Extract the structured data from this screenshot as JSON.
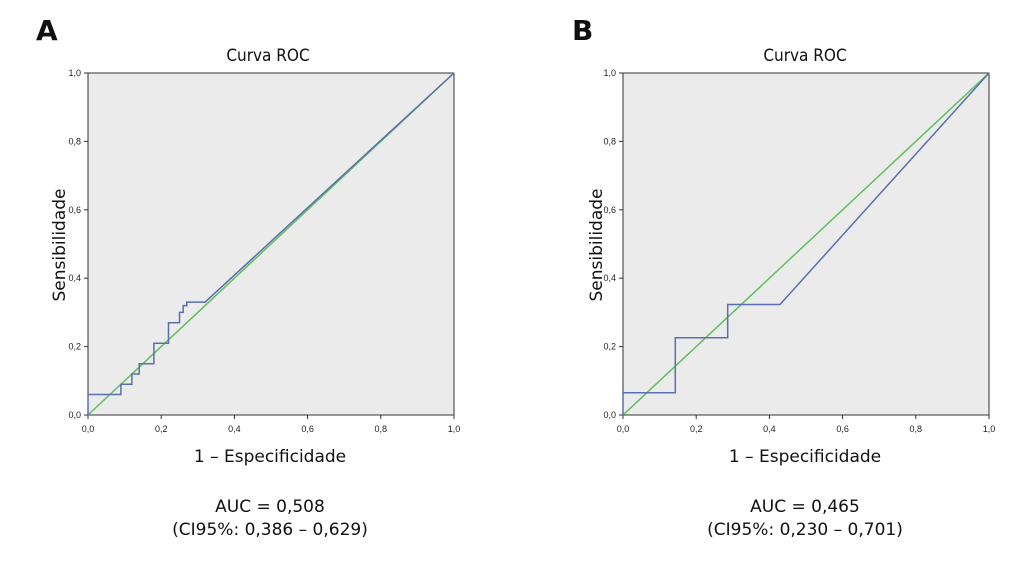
{
  "panels": [
    {
      "letter": "A",
      "title": "Curva ROC",
      "xlabel": "1 – Especificidade",
      "ylabel": "Sensibilidade",
      "auc_text": "AUC = 0,508",
      "ci_text": "(CI95%: 0,386 – 0,629)",
      "chart_data": {
        "type": "line",
        "title": "Curva ROC",
        "xlabel": "1 – Especificidade",
        "ylabel": "Sensibilidade",
        "xlim": [
          0,
          1
        ],
        "ylim": [
          0,
          1
        ],
        "xticks": [
          "0,0",
          "0,2",
          "0,4",
          "0,6",
          "0,8",
          "1,0"
        ],
        "yticks": [
          "0,0",
          "0,2",
          "0,4",
          "0,6",
          "0,8",
          "1,0"
        ],
        "grid": false,
        "colors": {
          "roc": "#5b6fb0",
          "reference": "#5fbf5f",
          "background": "#ebebeb"
        },
        "series": [
          {
            "role": "roc",
            "x": [
              0,
              0,
              0.09,
              0.09,
              0.12,
              0.12,
              0.14,
              0.14,
              0.18,
              0.18,
              0.22,
              0.22,
              0.25,
              0.25,
              0.26,
              0.26,
              0.27,
              0.27,
              0.32,
              1.0
            ],
            "y": [
              0,
              0.06,
              0.06,
              0.09,
              0.09,
              0.12,
              0.12,
              0.15,
              0.15,
              0.21,
              0.21,
              0.27,
              0.27,
              0.3,
              0.3,
              0.32,
              0.32,
              0.33,
              0.33,
              1.0
            ]
          },
          {
            "role": "reference",
            "x": [
              0,
              1
            ],
            "y": [
              0,
              1
            ]
          }
        ]
      }
    },
    {
      "letter": "B",
      "title": "Curva ROC",
      "xlabel": "1 – Especificidade",
      "ylabel": "Sensibilidade",
      "auc_text": "AUC = 0,465",
      "ci_text": "(CI95%: 0,230 – 0,701)",
      "chart_data": {
        "type": "line",
        "title": "Curva ROC",
        "xlabel": "1 – Especificidade",
        "ylabel": "Sensibilidade",
        "xlim": [
          0,
          1
        ],
        "ylim": [
          0,
          1
        ],
        "xticks": [
          "0,0",
          "0,2",
          "0,4",
          "0,6",
          "0,8",
          "1,0"
        ],
        "yticks": [
          "0,0",
          "0,2",
          "0,4",
          "0,6",
          "0,8",
          "1,0"
        ],
        "grid": false,
        "colors": {
          "roc": "#5b6fb0",
          "reference": "#5fbf5f",
          "background": "#ebebeb"
        },
        "series": [
          {
            "role": "roc",
            "x": [
              0,
              0,
              0.143,
              0.143,
              0.286,
              0.286,
              0.429,
              1.0
            ],
            "y": [
              0,
              0.065,
              0.065,
              0.226,
              0.226,
              0.323,
              0.323,
              1.0
            ]
          },
          {
            "role": "reference",
            "x": [
              0,
              1
            ],
            "y": [
              0,
              1
            ]
          }
        ]
      }
    }
  ]
}
